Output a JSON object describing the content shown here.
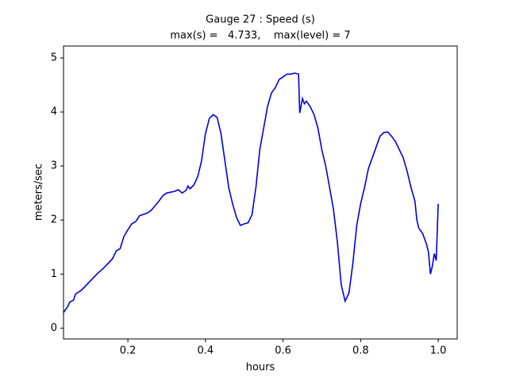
{
  "chart_data": {
    "type": "line",
    "title": "Gauge 27 : Speed (s)",
    "subtitle": "max(s) =   4.733,    max(level) = 7",
    "x_label": "hours",
    "y_label": "meters/sec",
    "x": [
      0.034,
      0.045,
      0.05,
      0.06,
      0.065,
      0.08,
      0.1,
      0.12,
      0.14,
      0.16,
      0.17,
      0.18,
      0.19,
      0.2,
      0.21,
      0.22,
      0.23,
      0.25,
      0.26,
      0.28,
      0.29,
      0.3,
      0.32,
      0.33,
      0.34,
      0.35,
      0.355,
      0.36,
      0.37,
      0.38,
      0.39,
      0.4,
      0.41,
      0.42,
      0.43,
      0.44,
      0.45,
      0.46,
      0.47,
      0.48,
      0.49,
      0.5,
      0.51,
      0.52,
      0.53,
      0.54,
      0.55,
      0.56,
      0.57,
      0.58,
      0.59,
      0.6,
      0.61,
      0.62,
      0.63,
      0.64,
      0.643,
      0.65,
      0.655,
      0.66,
      0.67,
      0.68,
      0.69,
      0.7,
      0.71,
      0.72,
      0.73,
      0.74,
      0.75,
      0.76,
      0.77,
      0.78,
      0.79,
      0.8,
      0.81,
      0.82,
      0.83,
      0.84,
      0.85,
      0.86,
      0.87,
      0.88,
      0.89,
      0.9,
      0.91,
      0.92,
      0.93,
      0.94,
      0.945,
      0.95,
      0.96,
      0.97,
      0.975,
      0.98,
      0.985,
      0.99,
      0.995,
      1.0
    ],
    "series": [
      {
        "name": "speed",
        "color": "#0000dd",
        "values": [
          0.29,
          0.4,
          0.48,
          0.52,
          0.63,
          0.7,
          0.85,
          1.0,
          1.13,
          1.28,
          1.43,
          1.47,
          1.7,
          1.82,
          1.93,
          1.97,
          2.08,
          2.13,
          2.18,
          2.35,
          2.45,
          2.5,
          2.53,
          2.56,
          2.5,
          2.55,
          2.63,
          2.58,
          2.65,
          2.8,
          3.1,
          3.6,
          3.88,
          3.95,
          3.9,
          3.6,
          3.1,
          2.6,
          2.3,
          2.05,
          1.9,
          1.93,
          1.95,
          2.1,
          2.6,
          3.3,
          3.7,
          4.1,
          4.35,
          4.45,
          4.6,
          4.65,
          4.7,
          4.7,
          4.72,
          4.7,
          3.98,
          4.25,
          4.15,
          4.2,
          4.1,
          3.95,
          3.7,
          3.3,
          3.0,
          2.6,
          2.2,
          1.6,
          0.8,
          0.5,
          0.65,
          1.2,
          1.9,
          2.3,
          2.6,
          2.95,
          3.15,
          3.35,
          3.55,
          3.62,
          3.63,
          3.55,
          3.45,
          3.3,
          3.15,
          2.9,
          2.6,
          2.35,
          2.0,
          1.85,
          1.75,
          1.55,
          1.4,
          1.0,
          1.15,
          1.38,
          1.25,
          2.3
        ]
      }
    ],
    "xlim": [
      0.034,
      1.049
    ],
    "ylim": [
      -0.2,
      5.22
    ],
    "xticks": [
      0.2,
      0.4,
      0.6,
      0.8,
      {
        "value": 1.0,
        "label": "1.0"
      }
    ],
    "yticks": [
      0,
      1,
      2,
      3,
      4,
      5
    ]
  }
}
